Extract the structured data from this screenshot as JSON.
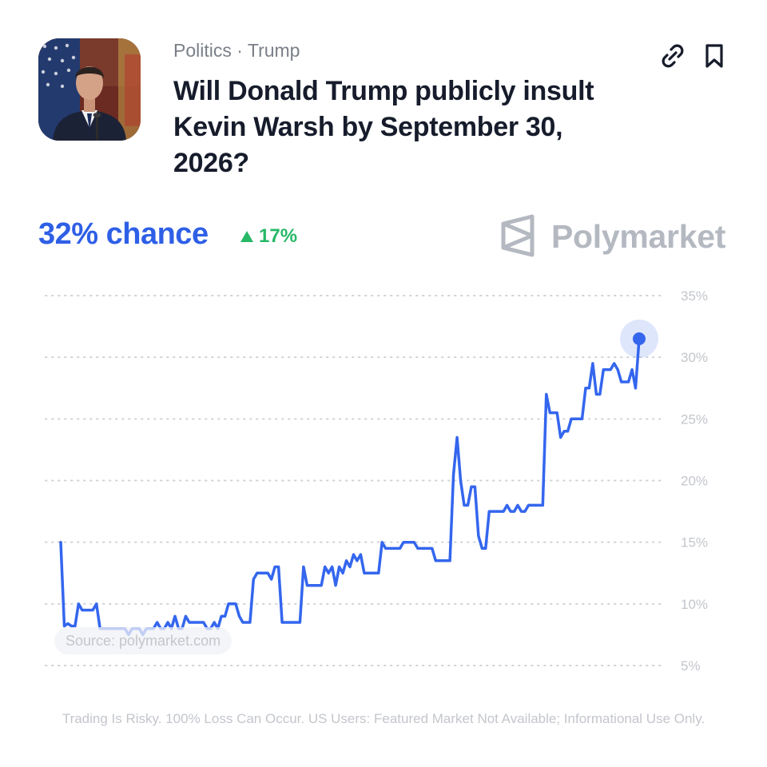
{
  "market": {
    "category": "Politics · Trump",
    "title": "Will Donald Trump publicly insult Kevin Warsh by September 30, 2026?",
    "chance_label": "32% chance",
    "change_label": "17%",
    "change_direction": "up",
    "brand": "Polymarket",
    "source": "Source: polymarket.com",
    "disclaimer": "Trading Is Risky. 100% Loss Can Occur. US Users: Featured Market Not Available; Informational Use Only."
  },
  "colors": {
    "accent": "#2e5fe6",
    "line": "#3466ee",
    "positive": "#28b867",
    "brand_gray": "#b4b9c1",
    "muted": "#c3c6cc"
  },
  "icons": [
    "link-icon",
    "bookmark-icon",
    "polymarket-logo-icon",
    "triangle-up-icon"
  ],
  "chart_data": {
    "type": "line",
    "title": "",
    "xlabel": "",
    "ylabel": "",
    "ylim": [
      5,
      35
    ],
    "yticks": [
      5,
      10,
      15,
      20,
      25,
      30,
      35
    ],
    "ytick_labels": [
      "5%",
      "10%",
      "15%",
      "20%",
      "25%",
      "30%",
      "35%"
    ],
    "grid": true,
    "series": [
      {
        "values": [
          15,
          8.2,
          8.4,
          8.2,
          8.2,
          10,
          9.5,
          9.5,
          9.5,
          9.5,
          10,
          8,
          8,
          8,
          8,
          8,
          8,
          8,
          8,
          7.5,
          8,
          8,
          8,
          7.5,
          8,
          8,
          8,
          8.5,
          8,
          8,
          8.5,
          8,
          9,
          8,
          8,
          9,
          8.5,
          8.5,
          8.5,
          8.5,
          8.5,
          8,
          8,
          8.5,
          8,
          9,
          9,
          10,
          10,
          10,
          9,
          8.5,
          8.5,
          8.5,
          12,
          12.5,
          12.5,
          12.5,
          12.5,
          12,
          13,
          13,
          8.5,
          8.5,
          8.5,
          8.5,
          8.5,
          8.5,
          13,
          11.5,
          11.5,
          11.5,
          11.5,
          11.5,
          13,
          12.5,
          13,
          11.5,
          13,
          12.5,
          13.5,
          13,
          14,
          13.5,
          14,
          12.5,
          12.5,
          12.5,
          12.5,
          12.5,
          15,
          14.5,
          14.5,
          14.5,
          14.5,
          14.5,
          15,
          15,
          15,
          15,
          14.5,
          14.5,
          14.5,
          14.5,
          14.5,
          13.5,
          13.5,
          13.5,
          13.5,
          13.5,
          20.5,
          23.5,
          20,
          18,
          18,
          19.5,
          19.5,
          15.5,
          14.5,
          14.5,
          17.5,
          17.5,
          17.5,
          17.5,
          17.5,
          18,
          17.5,
          17.5,
          18,
          17.5,
          17.5,
          18,
          18,
          18,
          18,
          18,
          27,
          25.5,
          25.5,
          25.5,
          23.5,
          24,
          24,
          25,
          25,
          25,
          25,
          27.5,
          27.5,
          29.5,
          27,
          27,
          29,
          29,
          29,
          29.5,
          29,
          28,
          28,
          28,
          29,
          27.5,
          31.5
        ]
      }
    ],
    "current_value": 31.5
  }
}
